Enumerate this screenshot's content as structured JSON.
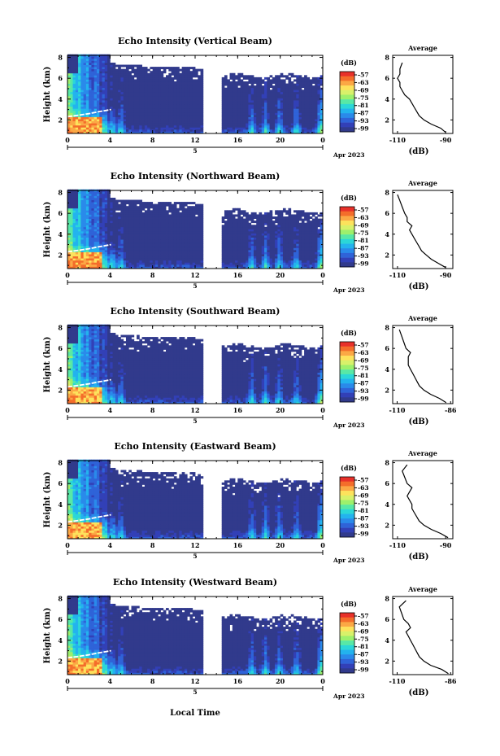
{
  "figure": {
    "xlabel": "Local Time",
    "date_label": "Apr 2023",
    "day_label": "5",
    "avg_title": "Average",
    "avg_xlabel": "(dB)",
    "cbar_title": "(dB)"
  },
  "colorbar": {
    "ticks": [
      "-57",
      "-63",
      "-69",
      "-75",
      "-81",
      "-87",
      "-93",
      "-99"
    ],
    "colors": [
      "#e8312a",
      "#f46d2b",
      "#fba845",
      "#fde25c",
      "#d8f16a",
      "#9df06c",
      "#58e8a6",
      "#2bd7d8",
      "#23b3ee",
      "#2a8aea",
      "#2f63d8",
      "#3240b7",
      "#313a8c"
    ]
  },
  "chart_data": [
    {
      "type": "heatmap",
      "title": "Echo Intensity (Vertical Beam)",
      "xlabel": "Local Time",
      "ylabel": "Height (km)",
      "x_ticks": [
        "0",
        "4",
        "8",
        "12",
        "16",
        "20",
        "0"
      ],
      "y_ticks": [
        "2",
        "4",
        "6",
        "8"
      ],
      "xlim": [
        0,
        24
      ],
      "ylim": [
        0.7,
        8.2
      ],
      "colorbar_range_db": [
        -99,
        -57
      ],
      "data_gap_hours": [
        12.7,
        14.5
      ],
      "average_profile": {
        "title": "Average",
        "xlabel": "(dB)",
        "x_ticks": [
          "-110",
          "-90"
        ],
        "y_ticks": [
          "2",
          "4",
          "6",
          "8"
        ],
        "xlim": [
          -112,
          -87
        ],
        "db": [
          -90,
          -92,
          -96,
          -99,
          -101,
          -102,
          -103,
          -104,
          -105,
          -107,
          -108,
          -109,
          -109,
          -110,
          -109,
          -109,
          -108
        ],
        "height_km": [
          0.8,
          1.2,
          1.6,
          2.0,
          2.4,
          2.8,
          3.2,
          3.6,
          4.0,
          4.4,
          4.8,
          5.2,
          5.6,
          6.0,
          6.4,
          6.9,
          7.5
        ]
      }
    },
    {
      "type": "heatmap",
      "title": "Echo Intensity (Northward Beam)",
      "xlabel": "Local Time",
      "ylabel": "Height (km)",
      "x_ticks": [
        "0",
        "4",
        "8",
        "12",
        "16",
        "20",
        "0"
      ],
      "y_ticks": [
        "2",
        "4",
        "6",
        "8"
      ],
      "xlim": [
        0,
        24
      ],
      "ylim": [
        0.7,
        8.2
      ],
      "colorbar_range_db": [
        -99,
        -57
      ],
      "data_gap_hours": [
        12.7,
        14.5
      ],
      "average_profile": {
        "title": "Average",
        "xlabel": "(dB)",
        "x_ticks": [
          "-110",
          "-90"
        ],
        "y_ticks": [
          "2",
          "4",
          "6",
          "8"
        ],
        "xlim": [
          -112,
          -87
        ],
        "db": [
          -90,
          -93,
          -96,
          -98,
          -100,
          -101,
          -102,
          -103,
          -104,
          -105,
          -104,
          -106,
          -106,
          -107,
          -108,
          -109,
          -110
        ],
        "height_km": [
          0.8,
          1.2,
          1.6,
          2.0,
          2.4,
          2.8,
          3.2,
          3.6,
          4.0,
          4.4,
          4.8,
          5.2,
          5.6,
          6.0,
          6.6,
          7.2,
          7.8
        ]
      }
    },
    {
      "type": "heatmap",
      "title": "Echo Intensity (Southward Beam)",
      "xlabel": "Local Time",
      "ylabel": "Height (km)",
      "x_ticks": [
        "0",
        "4",
        "8",
        "12",
        "16",
        "20",
        "0"
      ],
      "y_ticks": [
        "2",
        "4",
        "6",
        "8"
      ],
      "xlim": [
        0,
        24
      ],
      "ylim": [
        0.7,
        8.2
      ],
      "colorbar_range_db": [
        -99,
        -57
      ],
      "data_gap_hours": [
        12.7,
        14.5
      ],
      "average_profile": {
        "title": "Average",
        "xlabel": "(dB)",
        "x_ticks": [
          "-110",
          "-86"
        ],
        "y_ticks": [
          "2",
          "4",
          "6",
          "8"
        ],
        "xlim": [
          -112,
          -85
        ],
        "db": [
          -88,
          -91,
          -95,
          -98,
          -100,
          -101,
          -102,
          -103,
          -104,
          -105,
          -105,
          -105,
          -104,
          -106,
          -107,
          -108,
          -109
        ],
        "height_km": [
          0.8,
          1.2,
          1.6,
          2.0,
          2.4,
          2.8,
          3.2,
          3.6,
          4.0,
          4.4,
          4.8,
          5.2,
          5.6,
          6.0,
          6.6,
          7.2,
          7.8
        ]
      }
    },
    {
      "type": "heatmap",
      "title": "Echo Intensity (Eastward Beam)",
      "xlabel": "Local Time",
      "ylabel": "Height (km)",
      "x_ticks": [
        "0",
        "4",
        "8",
        "12",
        "16",
        "20",
        "0"
      ],
      "y_ticks": [
        "2",
        "4",
        "6",
        "8"
      ],
      "xlim": [
        0,
        24
      ],
      "ylim": [
        0.7,
        8.2
      ],
      "colorbar_range_db": [
        -99,
        -57
      ],
      "data_gap_hours": [
        12.7,
        14.5
      ],
      "average_profile": {
        "title": "Average",
        "xlabel": "(dB)",
        "x_ticks": [
          "-110",
          "-90"
        ],
        "y_ticks": [
          "2",
          "4",
          "6",
          "8"
        ],
        "xlim": [
          -112,
          -87
        ],
        "db": [
          -89,
          -92,
          -96,
          -99,
          -101,
          -102,
          -103,
          -104,
          -104,
          -105,
          -106,
          -105,
          -104,
          -106,
          -107,
          -108,
          -106
        ],
        "height_km": [
          0.8,
          1.2,
          1.6,
          2.0,
          2.4,
          2.8,
          3.2,
          3.6,
          4.0,
          4.4,
          4.8,
          5.2,
          5.6,
          6.0,
          6.6,
          7.2,
          7.8
        ]
      }
    },
    {
      "type": "heatmap",
      "title": "Echo Intensity (Westward Beam)",
      "xlabel": "Local Time",
      "ylabel": "Height (km)",
      "x_ticks": [
        "0",
        "4",
        "8",
        "12",
        "16",
        "20",
        "0"
      ],
      "y_ticks": [
        "2",
        "4",
        "6",
        "8"
      ],
      "xlim": [
        0,
        24
      ],
      "ylim": [
        0.7,
        8.2
      ],
      "colorbar_range_db": [
        -99,
        -57
      ],
      "data_gap_hours": [
        12.7,
        14.5
      ],
      "average_profile": {
        "title": "Average",
        "xlabel": "(dB)",
        "x_ticks": [
          "-110",
          "-86"
        ],
        "y_ticks": [
          "2",
          "4",
          "6",
          "8"
        ],
        "xlim": [
          -112,
          -85
        ],
        "db": [
          -87,
          -90,
          -95,
          -98,
          -100,
          -101,
          -102,
          -103,
          -104,
          -105,
          -106,
          -104,
          -105,
          -107,
          -108,
          -109,
          -106
        ],
        "height_km": [
          0.8,
          1.2,
          1.6,
          2.0,
          2.4,
          2.8,
          3.2,
          3.6,
          4.0,
          4.4,
          4.8,
          5.2,
          5.6,
          6.0,
          6.6,
          7.2,
          7.8
        ]
      }
    }
  ]
}
